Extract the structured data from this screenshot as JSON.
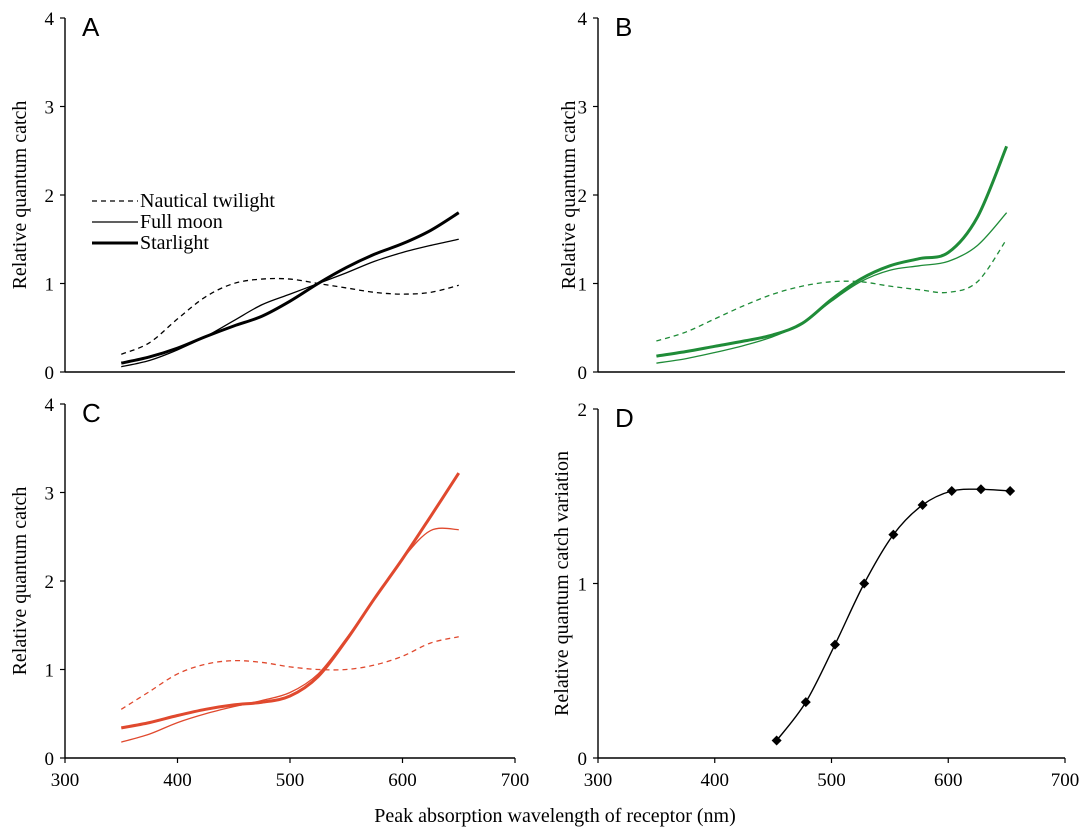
{
  "figure": {
    "xlabel": "Peak absorption wavelength of receptor (nm)"
  },
  "chart_data": [
    {
      "panel": "A",
      "type": "line",
      "ylabel": "Relative quantum catch",
      "xlim": [
        300,
        700
      ],
      "ylim": [
        0,
        4
      ],
      "yticks": [
        0,
        1,
        2,
        3,
        4
      ],
      "xticks": [],
      "color": "#000000",
      "legend": [
        "Nautical twilight",
        "Full moon",
        "Starlight"
      ],
      "series": [
        {
          "name": "Nautical twilight",
          "style": "dashed",
          "weight": "thin",
          "x": [
            350,
            375,
            400,
            425,
            450,
            475,
            500,
            525,
            550,
            575,
            600,
            625,
            650
          ],
          "y": [
            0.2,
            0.33,
            0.6,
            0.85,
            1.0,
            1.05,
            1.05,
            1.0,
            0.95,
            0.9,
            0.88,
            0.9,
            0.98
          ]
        },
        {
          "name": "Full moon",
          "style": "solid",
          "weight": "thin",
          "x": [
            350,
            375,
            400,
            425,
            450,
            475,
            500,
            525,
            550,
            575,
            600,
            625,
            650
          ],
          "y": [
            0.06,
            0.13,
            0.25,
            0.4,
            0.58,
            0.76,
            0.88,
            1.0,
            1.12,
            1.25,
            1.35,
            1.43,
            1.5
          ]
        },
        {
          "name": "Starlight",
          "style": "solid",
          "weight": "thick",
          "x": [
            350,
            375,
            400,
            425,
            450,
            475,
            500,
            525,
            550,
            575,
            600,
            625,
            650
          ],
          "y": [
            0.1,
            0.17,
            0.27,
            0.4,
            0.52,
            0.63,
            0.8,
            1.0,
            1.18,
            1.33,
            1.45,
            1.6,
            1.8
          ]
        }
      ]
    },
    {
      "panel": "B",
      "type": "line",
      "ylabel": "Relative quantum catch",
      "xlim": [
        300,
        700
      ],
      "ylim": [
        0,
        4
      ],
      "yticks": [
        0,
        1,
        2,
        3,
        4
      ],
      "xticks": [],
      "color": "#1f8c38",
      "series": [
        {
          "name": "Nautical twilight",
          "style": "dashed",
          "weight": "thin",
          "x": [
            350,
            375,
            400,
            425,
            450,
            475,
            500,
            525,
            550,
            575,
            600,
            625,
            650
          ],
          "y": [
            0.35,
            0.45,
            0.6,
            0.75,
            0.88,
            0.97,
            1.02,
            1.02,
            0.97,
            0.93,
            0.9,
            1.02,
            1.5
          ]
        },
        {
          "name": "Full moon",
          "style": "solid",
          "weight": "thin",
          "x": [
            350,
            375,
            400,
            425,
            450,
            475,
            500,
            525,
            550,
            575,
            600,
            625,
            650
          ],
          "y": [
            0.1,
            0.15,
            0.22,
            0.3,
            0.4,
            0.55,
            0.8,
            1.02,
            1.15,
            1.2,
            1.25,
            1.43,
            1.8
          ]
        },
        {
          "name": "Starlight",
          "style": "solid",
          "weight": "thick",
          "x": [
            350,
            375,
            400,
            425,
            450,
            475,
            500,
            525,
            550,
            575,
            600,
            625,
            650
          ],
          "y": [
            0.18,
            0.23,
            0.29,
            0.35,
            0.42,
            0.55,
            0.82,
            1.05,
            1.2,
            1.28,
            1.35,
            1.75,
            2.55
          ]
        }
      ]
    },
    {
      "panel": "C",
      "type": "line",
      "ylabel": "Relative quantum catch",
      "xlim": [
        300,
        700
      ],
      "ylim": [
        0,
        4
      ],
      "yticks": [
        0,
        1,
        2,
        3,
        4
      ],
      "xticks": [
        300,
        400,
        500,
        600,
        700
      ],
      "color": "#e0492e",
      "series": [
        {
          "name": "Nautical twilight",
          "style": "dashed",
          "weight": "thin",
          "x": [
            350,
            375,
            400,
            425,
            450,
            475,
            500,
            525,
            550,
            575,
            600,
            625,
            650
          ],
          "y": [
            0.55,
            0.75,
            0.95,
            1.06,
            1.1,
            1.08,
            1.03,
            1.0,
            1.0,
            1.05,
            1.15,
            1.3,
            1.37
          ]
        },
        {
          "name": "Full moon",
          "style": "solid",
          "weight": "thin",
          "x": [
            350,
            375,
            400,
            425,
            450,
            475,
            500,
            525,
            550,
            575,
            600,
            625,
            650
          ],
          "y": [
            0.18,
            0.27,
            0.4,
            0.5,
            0.58,
            0.65,
            0.74,
            0.95,
            1.35,
            1.8,
            2.25,
            2.57,
            2.58
          ]
        },
        {
          "name": "Starlight",
          "style": "solid",
          "weight": "thick",
          "x": [
            350,
            375,
            400,
            425,
            450,
            475,
            500,
            525,
            550,
            575,
            600,
            625,
            650
          ],
          "y": [
            0.34,
            0.4,
            0.48,
            0.55,
            0.6,
            0.63,
            0.7,
            0.92,
            1.33,
            1.8,
            2.25,
            2.73,
            3.22
          ]
        }
      ]
    },
    {
      "panel": "D",
      "type": "line",
      "ylabel": "Relative quantum catch variation",
      "xlim": [
        300,
        700
      ],
      "ylim": [
        0,
        2
      ],
      "yticks": [
        0,
        1,
        2
      ],
      "xticks": [
        300,
        400,
        500,
        600,
        700
      ],
      "color": "#000000",
      "series": [
        {
          "style": "solid-with-diamonds",
          "x": [
            453,
            478,
            503,
            528,
            553,
            578,
            603,
            628,
            653
          ],
          "y": [
            0.1,
            0.32,
            0.65,
            1.0,
            1.28,
            1.45,
            1.53,
            1.54,
            1.53
          ]
        }
      ]
    }
  ]
}
